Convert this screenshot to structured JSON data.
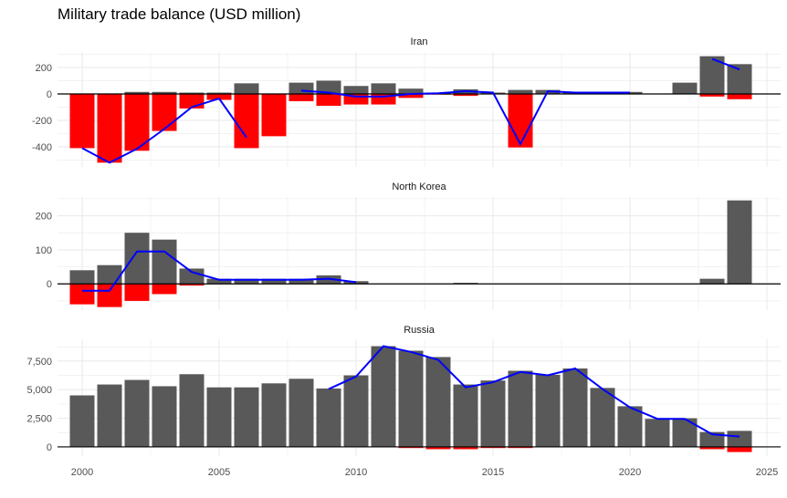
{
  "chart_data": {
    "type": "bar",
    "title": "Military trade balance (USD million)",
    "xlabel": "",
    "ylabel": "",
    "x_ticks": [
      2000,
      2005,
      2010,
      2015,
      2020,
      2025
    ],
    "xlim": [
      1999.1,
      2025.5
    ],
    "colors": {
      "exports": "#595959",
      "imports": "#ff0000",
      "balance_line": "#0000ff",
      "zero_line": "#000000",
      "grid": "#ebebeb"
    },
    "years": [
      2000,
      2001,
      2002,
      2003,
      2004,
      2005,
      2006,
      2007,
      2008,
      2009,
      2010,
      2011,
      2012,
      2013,
      2014,
      2015,
      2016,
      2017,
      2018,
      2019,
      2020,
      2021,
      2022,
      2023,
      2024
    ],
    "panels": [
      {
        "name": "Iran",
        "ylim": [
          -552,
          317
        ],
        "y_ticks": [
          -400,
          -200,
          0,
          200
        ],
        "y_tick_labels": [
          "-400",
          "-200",
          "0",
          "200"
        ],
        "exports": [
          0,
          0,
          15,
          15,
          10,
          10,
          80,
          0,
          85,
          100,
          60,
          80,
          40,
          10,
          35,
          10,
          30,
          30,
          10,
          0,
          15,
          0,
          85,
          285,
          225
        ],
        "imports": [
          -410,
          -520,
          -430,
          -280,
          -110,
          -45,
          -410,
          -320,
          -55,
          -90,
          -80,
          -80,
          -30,
          -5,
          -15,
          0,
          -405,
          0,
          0,
          0,
          0,
          0,
          0,
          -20,
          -40
        ],
        "balance": [
          -410,
          -520,
          -415,
          -265,
          -100,
          -35,
          -330,
          null,
          25,
          10,
          -20,
          -20,
          0,
          5,
          20,
          10,
          -380,
          20,
          10,
          10,
          10,
          null,
          null,
          265,
          185
        ]
      },
      {
        "name": "North Korea",
        "ylim": [
          -77,
          255
        ],
        "y_ticks": [
          0,
          100,
          200
        ],
        "y_tick_labels": [
          "0",
          "100",
          "200"
        ],
        "exports": [
          40,
          55,
          150,
          130,
          45,
          15,
          15,
          15,
          15,
          25,
          8,
          0,
          0,
          0,
          3,
          0,
          0,
          0,
          0,
          0,
          0,
          0,
          0,
          15,
          245
        ],
        "imports": [
          -60,
          -68,
          -50,
          -30,
          -5,
          0,
          0,
          0,
          0,
          0,
          0,
          0,
          0,
          0,
          0,
          0,
          0,
          0,
          0,
          0,
          0,
          0,
          0,
          0,
          0
        ],
        "balance": [
          -20,
          -20,
          95,
          95,
          35,
          12,
          12,
          12,
          12,
          15,
          5,
          null,
          null,
          null,
          null,
          null,
          null,
          null,
          null,
          null,
          null,
          null,
          null,
          null,
          null
        ]
      },
      {
        "name": "Russia",
        "ylim": [
          -800,
          9400
        ],
        "y_ticks": [
          0,
          2500,
          5000,
          7500
        ],
        "y_tick_labels": [
          "0",
          "2,500",
          "5,000",
          "7,500"
        ],
        "exports": [
          4500,
          5450,
          5850,
          5300,
          6350,
          5200,
          5200,
          5550,
          5950,
          5100,
          6250,
          8800,
          8400,
          7850,
          5450,
          5800,
          6650,
          6300,
          6850,
          5150,
          3550,
          2450,
          2500,
          1300,
          1400
        ],
        "imports": [
          0,
          0,
          0,
          0,
          0,
          0,
          0,
          0,
          0,
          0,
          0,
          0,
          -100,
          -200,
          -200,
          -100,
          -100,
          0,
          0,
          0,
          0,
          0,
          0,
          -200,
          -450
        ],
        "balance": [
          null,
          null,
          null,
          null,
          null,
          null,
          null,
          null,
          null,
          5050,
          6150,
          8800,
          8300,
          7600,
          5200,
          5650,
          6550,
          6250,
          6850,
          5050,
          3450,
          2450,
          2450,
          1100,
          900
        ]
      }
    ]
  }
}
